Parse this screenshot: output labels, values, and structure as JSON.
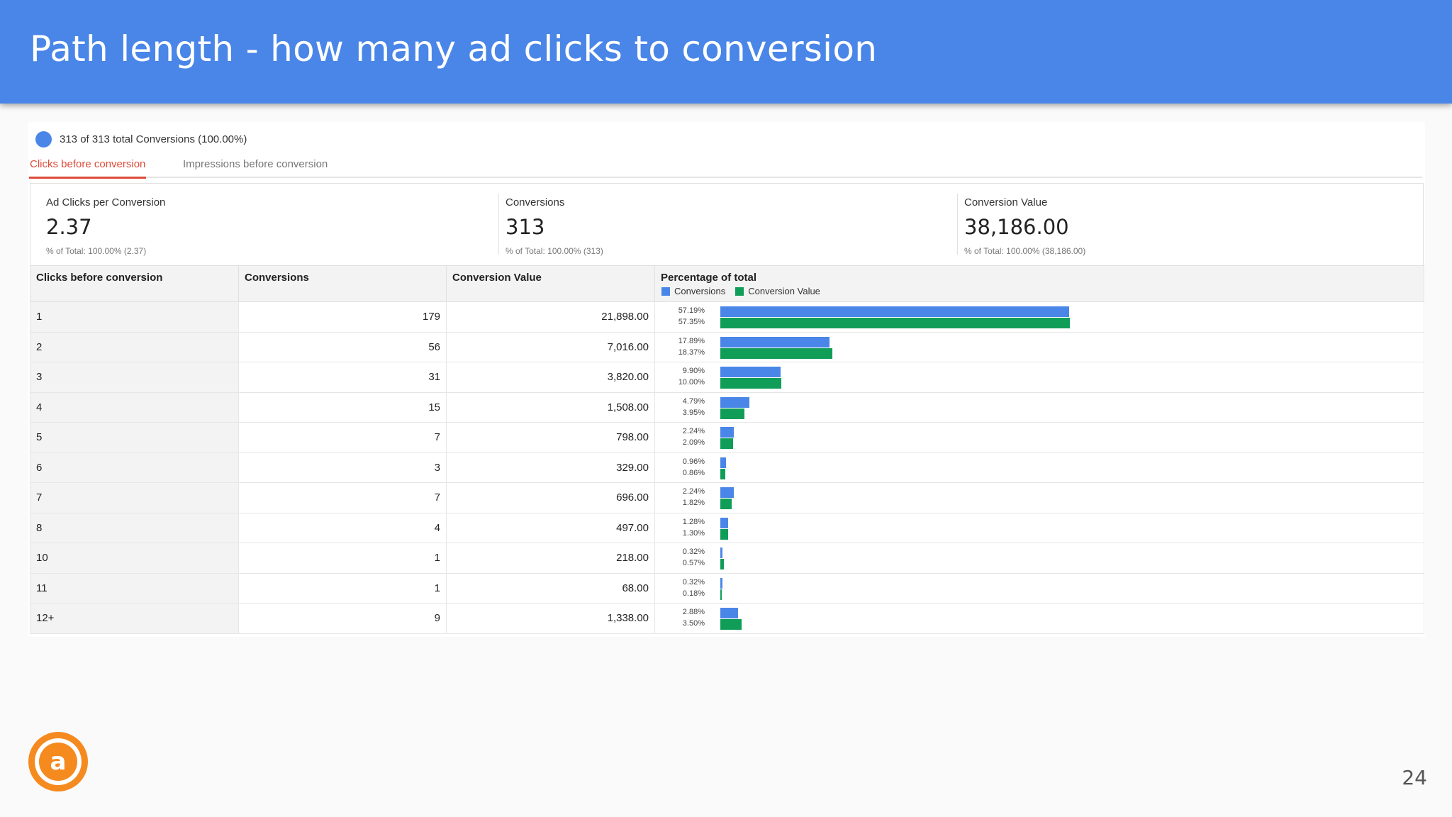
{
  "title": "Path length - how many ad clicks to conversion",
  "segment": {
    "label": "313 of 313 total Conversions (100.00%)",
    "color": "#4a86e8"
  },
  "tabs": [
    {
      "label": "Clicks before conversion",
      "active": true
    },
    {
      "label": "Impressions before conversion",
      "active": false
    }
  ],
  "metrics": [
    {
      "label": "Ad Clicks per Conversion",
      "value": "2.37",
      "footer": "% of Total: 100.00% (2.37)"
    },
    {
      "label": "Conversions",
      "value": "313",
      "footer": "% of Total: 100.00% (313)"
    },
    {
      "label": "Conversion Value",
      "value": "38,186.00",
      "footer": "% of Total: 100.00% (38,186.00)"
    }
  ],
  "table": {
    "headers": [
      "Clicks before conversion",
      "Conversions",
      "Conversion Value",
      "Percentage of total"
    ],
    "legend": {
      "series1": "Conversions",
      "series2": "Conversion Value"
    },
    "colors": {
      "conversions": "#4a86e8",
      "value": "#0f9d58"
    },
    "rows": [
      {
        "clicks": "1",
        "conversions": "179",
        "value": "21,898.00",
        "pct_conv": "57.19%",
        "pct_val": "57.35%",
        "conv_frac": 57.19,
        "val_frac": 57.35
      },
      {
        "clicks": "2",
        "conversions": "56",
        "value": "7,016.00",
        "pct_conv": "17.89%",
        "pct_val": "18.37%",
        "conv_frac": 17.89,
        "val_frac": 18.37
      },
      {
        "clicks": "3",
        "conversions": "31",
        "value": "3,820.00",
        "pct_conv": "9.90%",
        "pct_val": "10.00%",
        "conv_frac": 9.9,
        "val_frac": 10.0
      },
      {
        "clicks": "4",
        "conversions": "15",
        "value": "1,508.00",
        "pct_conv": "4.79%",
        "pct_val": "3.95%",
        "conv_frac": 4.79,
        "val_frac": 3.95
      },
      {
        "clicks": "5",
        "conversions": "7",
        "value": "798.00",
        "pct_conv": "2.24%",
        "pct_val": "2.09%",
        "conv_frac": 2.24,
        "val_frac": 2.09
      },
      {
        "clicks": "6",
        "conversions": "3",
        "value": "329.00",
        "pct_conv": "0.96%",
        "pct_val": "0.86%",
        "conv_frac": 0.96,
        "val_frac": 0.86
      },
      {
        "clicks": "7",
        "conversions": "7",
        "value": "696.00",
        "pct_conv": "2.24%",
        "pct_val": "1.82%",
        "conv_frac": 2.24,
        "val_frac": 1.82
      },
      {
        "clicks": "8",
        "conversions": "4",
        "value": "497.00",
        "pct_conv": "1.28%",
        "pct_val": "1.30%",
        "conv_frac": 1.28,
        "val_frac": 1.3
      },
      {
        "clicks": "10",
        "conversions": "1",
        "value": "218.00",
        "pct_conv": "0.32%",
        "pct_val": "0.57%",
        "conv_frac": 0.32,
        "val_frac": 0.57
      },
      {
        "clicks": "11",
        "conversions": "1",
        "value": "68.00",
        "pct_conv": "0.32%",
        "pct_val": "0.18%",
        "conv_frac": 0.32,
        "val_frac": 0.18
      },
      {
        "clicks": "12+",
        "conversions": "9",
        "value": "1,338.00",
        "pct_conv": "2.88%",
        "pct_val": "3.50%",
        "conv_frac": 2.88,
        "val_frac": 3.5
      }
    ]
  },
  "page_number": "24",
  "logo": {
    "icon": "a-logo-icon",
    "color": "#f58a1f",
    "letter": "a"
  }
}
